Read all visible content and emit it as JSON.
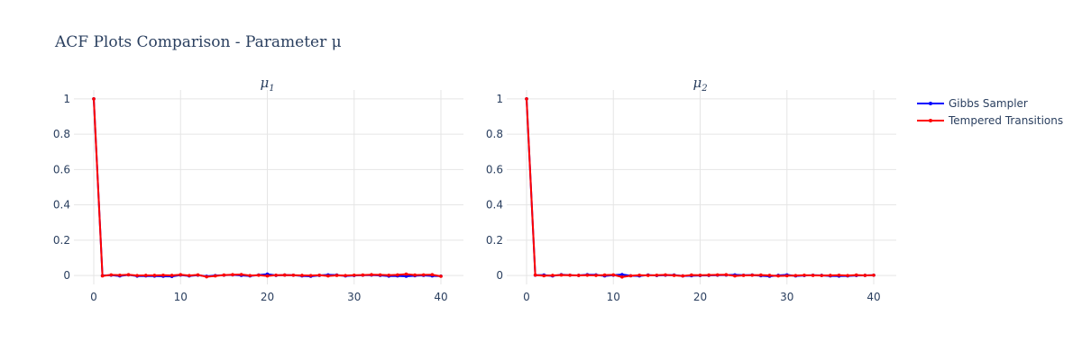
{
  "figure_title": "ACF Plots Comparison - Parameter μ",
  "colors": {
    "gibbs": "#0000ff",
    "tempered": "#ff0000",
    "grid": "#e5e5e5",
    "text": "#2a3f5f"
  },
  "legend": [
    {
      "label": "Gibbs Sampler",
      "color": "#0000ff"
    },
    {
      "label": "Tempered Transitions",
      "color": "#ff0000"
    }
  ],
  "chart_data": [
    {
      "type": "line",
      "title_main": "μ",
      "title_sub": "1",
      "xlim": [
        0,
        40
      ],
      "ylim": [
        -0.05,
        1.05
      ],
      "xticks": [
        0,
        10,
        20,
        30,
        40
      ],
      "yticks": [
        0,
        0.2,
        0.4,
        0.6,
        0.8,
        1
      ],
      "ytick_labels": [
        "0",
        "0.2",
        "0.4",
        "0.6",
        "0.8",
        "1"
      ],
      "x": [
        0,
        1,
        2,
        3,
        4,
        5,
        6,
        7,
        8,
        9,
        10,
        11,
        12,
        13,
        14,
        15,
        16,
        17,
        18,
        19,
        20,
        21,
        22,
        23,
        24,
        25,
        26,
        27,
        28,
        29,
        30,
        31,
        32,
        33,
        34,
        35,
        36,
        37,
        38,
        39,
        40
      ],
      "series": [
        {
          "name": "Gibbs Sampler",
          "values": [
            1,
            0.0,
            0.002,
            -0.002,
            0.004,
            -0.003,
            -0.002,
            -0.003,
            -0.004,
            -0.005,
            0.003,
            -0.002,
            0.002,
            -0.004,
            0.0,
            0.002,
            0.004,
            0.001,
            -0.002,
            0.003,
            0.008,
            0.001,
            0.003,
            0.002,
            -0.002,
            -0.004,
            0.001,
            0.004,
            0.003,
            -0.002,
            0.0,
            0.002,
            0.003,
            0.001,
            -0.003,
            -0.002,
            -0.004,
            -0.001,
            0.001,
            -0.002,
            -0.003
          ]
        },
        {
          "name": "Tempered Transitions",
          "values": [
            1,
            -0.002,
            0.004,
            0.002,
            0.005,
            0.0,
            0.001,
            0.001,
            0.002,
            0.001,
            0.005,
            0.0,
            0.004,
            -0.007,
            -0.002,
            0.003,
            0.005,
            0.006,
            0.0,
            0.002,
            -0.002,
            0.002,
            0.003,
            0.002,
            0.001,
            0.0,
            0.002,
            -0.002,
            0.001,
            0.0,
            0.002,
            0.003,
            0.005,
            0.004,
            0.002,
            0.004,
            0.008,
            0.003,
            0.004,
            0.005,
            -0.004
          ]
        }
      ]
    },
    {
      "type": "line",
      "title_main": "μ",
      "title_sub": "2",
      "xlim": [
        0,
        40
      ],
      "ylim": [
        -0.05,
        1.05
      ],
      "xticks": [
        0,
        10,
        20,
        30,
        40
      ],
      "yticks": [
        0,
        0.2,
        0.4,
        0.6,
        0.8,
        1
      ],
      "ytick_labels": [
        "0",
        "0.2",
        "0.4",
        "0.6",
        "0.8",
        "1"
      ],
      "x": [
        0,
        1,
        2,
        3,
        4,
        5,
        6,
        7,
        8,
        9,
        10,
        11,
        12,
        13,
        14,
        15,
        16,
        17,
        18,
        19,
        20,
        21,
        22,
        23,
        24,
        25,
        26,
        27,
        28,
        29,
        30,
        31,
        32,
        33,
        34,
        35,
        36,
        37,
        38,
        39,
        40
      ],
      "series": [
        {
          "name": "Gibbs Sampler",
          "values": [
            1,
            0.002,
            0.003,
            -0.002,
            0.005,
            0.002,
            0.001,
            0.005,
            0.004,
            -0.002,
            0.002,
            0.006,
            -0.001,
            -0.002,
            0.003,
            0.0,
            0.002,
            0.003,
            -0.002,
            -0.001,
            0.0,
            0.001,
            0.002,
            0.003,
            0.004,
            0.002,
            0.003,
            -0.001,
            -0.004,
            0.001,
            0.004,
            -0.002,
            0.0,
            0.002,
            0.001,
            -0.002,
            -0.003,
            -0.002,
            0.0,
            0.001,
            0.002
          ]
        },
        {
          "name": "Tempered Transitions",
          "values": [
            1,
            0.003,
            -0.001,
            0.001,
            0.003,
            0.002,
            0.001,
            0.002,
            0.001,
            0.003,
            0.004,
            -0.008,
            -0.001,
            0.002,
            0.001,
            0.002,
            0.004,
            0.001,
            -0.002,
            0.003,
            0.002,
            0.003,
            0.004,
            0.005,
            -0.002,
            0.001,
            0.002,
            0.003,
            0.001,
            -0.002,
            -0.001,
            0.0,
            0.002,
            0.001,
            0.0,
            0.001,
            0.002,
            0.0,
            0.003,
            0.001,
            0.002
          ]
        }
      ]
    }
  ]
}
